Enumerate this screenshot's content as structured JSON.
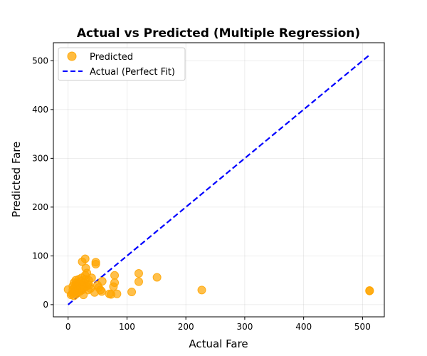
{
  "chart_data": {
    "type": "scatter",
    "title": "Actual vs Predicted (Multiple Regression)",
    "xlabel": "Actual Fare",
    "ylabel": "Predicted Fare",
    "xlim": [
      -25,
      537
    ],
    "ylim": [
      -25,
      537
    ],
    "xticks": [
      0,
      100,
      200,
      300,
      400,
      500
    ],
    "yticks": [
      0,
      100,
      200,
      300,
      400,
      500
    ],
    "grid": true,
    "legend_position": "top-left",
    "colors": {
      "points": "#FFA500",
      "fit_line": "#0000FF"
    },
    "series": [
      {
        "name": "Predicted",
        "kind": "scatter",
        "points": [
          [
            0,
            31
          ],
          [
            5,
            20
          ],
          [
            7,
            22
          ],
          [
            8,
            30
          ],
          [
            8,
            38
          ],
          [
            9,
            25
          ],
          [
            10,
            45
          ],
          [
            10,
            18
          ],
          [
            11,
            35
          ],
          [
            12,
            28
          ],
          [
            13,
            40
          ],
          [
            13,
            50
          ],
          [
            14,
            22
          ],
          [
            15,
            33
          ],
          [
            15,
            45
          ],
          [
            16,
            25
          ],
          [
            17,
            38
          ],
          [
            18,
            52
          ],
          [
            18,
            30
          ],
          [
            19,
            42
          ],
          [
            20,
            27
          ],
          [
            21,
            35
          ],
          [
            22,
            48
          ],
          [
            23,
            55
          ],
          [
            24,
            30
          ],
          [
            25,
            40
          ],
          [
            26,
            20
          ],
          [
            27,
            45
          ],
          [
            28,
            35
          ],
          [
            29,
            60
          ],
          [
            30,
            52
          ],
          [
            30,
            75
          ],
          [
            31,
            38
          ],
          [
            32,
            65
          ],
          [
            33,
            42
          ],
          [
            34,
            30
          ],
          [
            35,
            50
          ],
          [
            36,
            40
          ],
          [
            38,
            33
          ],
          [
            40,
            55
          ],
          [
            24,
            88
          ],
          [
            29,
            94
          ],
          [
            47,
            87
          ],
          [
            47,
            83
          ],
          [
            45,
            25
          ],
          [
            50,
            40
          ],
          [
            52,
            35
          ],
          [
            55,
            30
          ],
          [
            57,
            27
          ],
          [
            58,
            48
          ],
          [
            70,
            22
          ],
          [
            73,
            21
          ],
          [
            77,
            37
          ],
          [
            79,
            45
          ],
          [
            79,
            60
          ],
          [
            83,
            22
          ],
          [
            108,
            26
          ],
          [
            120,
            47
          ],
          [
            120,
            64
          ],
          [
            151,
            56
          ],
          [
            227,
            30
          ],
          [
            512,
            28
          ],
          [
            512,
            29
          ]
        ]
      },
      {
        "name": "Actual (Perfect Fit)",
        "kind": "line",
        "style": "dashed",
        "points": [
          [
            0,
            0
          ],
          [
            512,
            512
          ]
        ]
      }
    ]
  }
}
